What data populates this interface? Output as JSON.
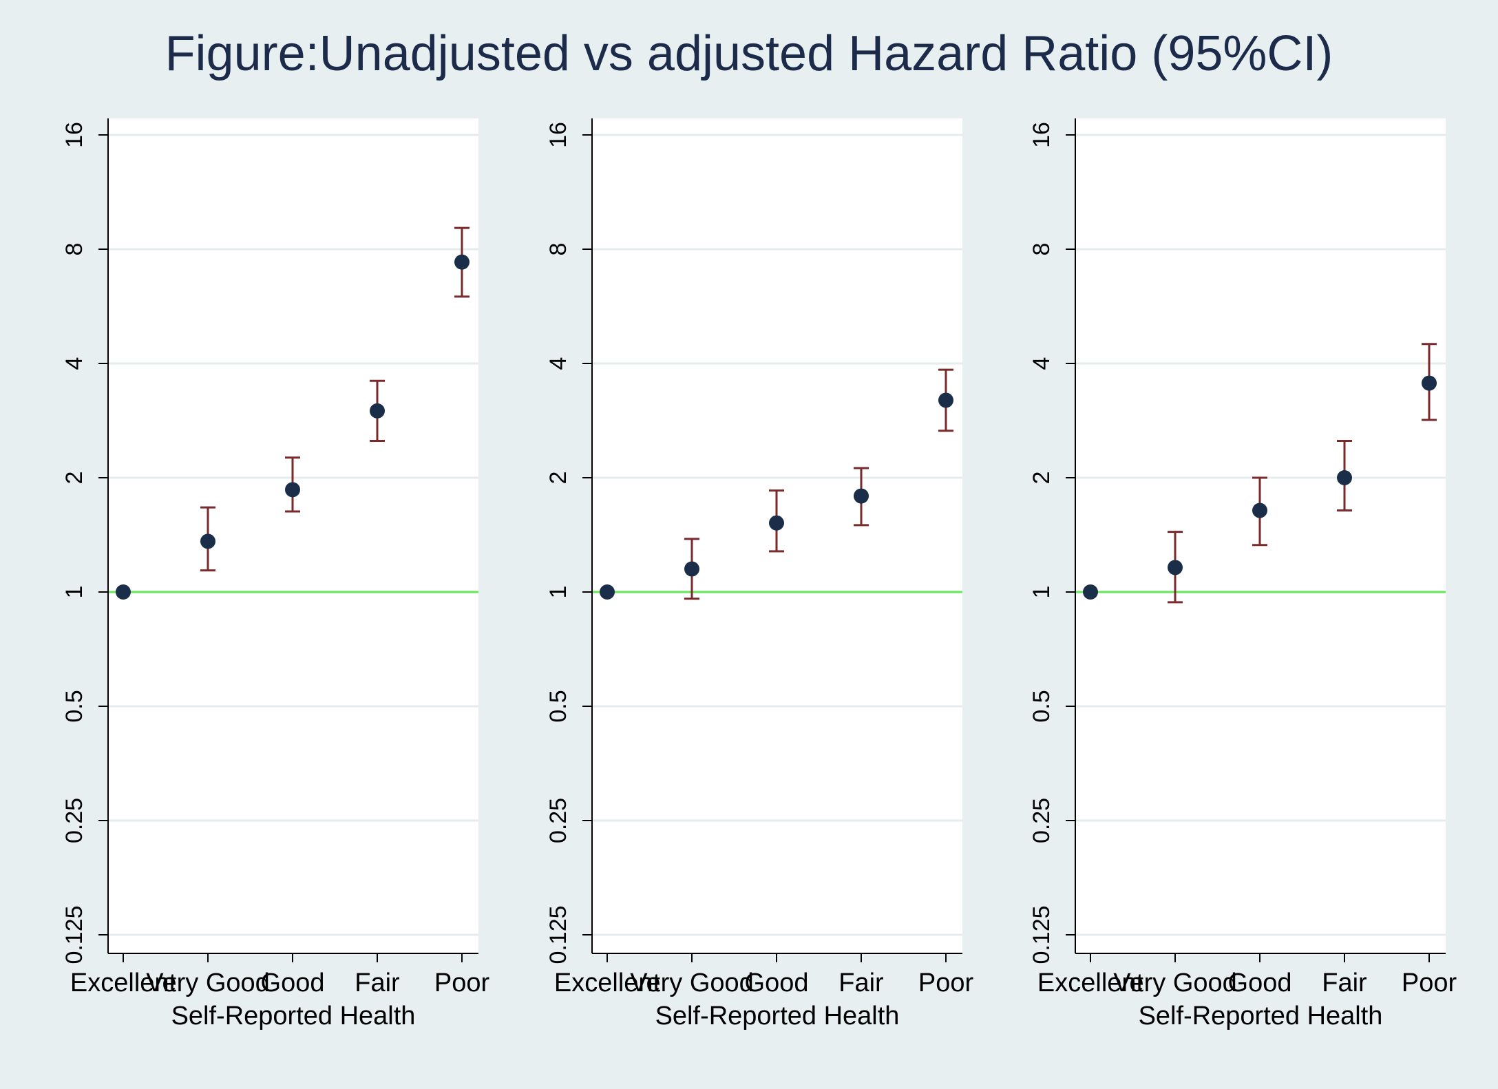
{
  "title": "Figure:Unadjusted vs adjusted Hazard Ratio (95%CI)",
  "colors": {
    "background": "#e8eff1",
    "plot_bg": "#ffffff",
    "title": "#1c2b4a",
    "point": "#1a2e4a",
    "ci": "#7a2a2a",
    "reference_line": "#62e85a",
    "grid": "#e4ecee",
    "axis": "#000000"
  },
  "chart_data": [
    {
      "type": "scatter",
      "error_bars": true,
      "categories": [
        "Excellent",
        "Very Good",
        "Good",
        "Fair",
        "Poor"
      ],
      "xlabel": "Self-Reported Health",
      "ylabel": "",
      "yscale": "log2",
      "ylim": [
        0.125,
        16
      ],
      "yticks": [
        "0.125",
        "0.25",
        "0.5",
        "1",
        "2",
        "4",
        "8",
        "16"
      ],
      "reference_line": 1,
      "grid": true,
      "estimates": [
        1,
        1.36,
        1.86,
        3.0,
        7.4
      ],
      "lower": [
        1,
        1.14,
        1.63,
        2.5,
        6.0
      ],
      "upper": [
        1,
        1.67,
        2.26,
        3.6,
        9.1
      ]
    },
    {
      "type": "scatter",
      "error_bars": true,
      "categories": [
        "Excellent",
        "Very Good",
        "Good",
        "Fair",
        "Poor"
      ],
      "xlabel": "Self-Reported Health",
      "ylabel": "",
      "yscale": "log2",
      "ylim": [
        0.125,
        16
      ],
      "yticks": [
        "0.125",
        "0.25",
        "0.5",
        "1",
        "2",
        "4",
        "8",
        "16"
      ],
      "reference_line": 1,
      "grid": true,
      "estimates": [
        1,
        1.15,
        1.52,
        1.79,
        3.2
      ],
      "lower": [
        1,
        0.96,
        1.28,
        1.5,
        2.66
      ],
      "upper": [
        1,
        1.38,
        1.85,
        2.12,
        3.85
      ]
    },
    {
      "type": "scatter",
      "error_bars": true,
      "categories": [
        "Excellent",
        "Very Good",
        "Good",
        "Fair",
        "Poor"
      ],
      "xlabel": "Self-Reported Health",
      "ylabel": "",
      "yscale": "log2",
      "ylim": [
        0.125,
        16
      ],
      "yticks": [
        "0.125",
        "0.25",
        "0.5",
        "1",
        "2",
        "4",
        "8",
        "16"
      ],
      "reference_line": 1,
      "grid": true,
      "estimates": [
        1,
        1.16,
        1.64,
        2.0,
        3.55
      ],
      "lower": [
        1,
        0.94,
        1.33,
        1.64,
        2.84
      ],
      "upper": [
        1,
        1.44,
        2.0,
        2.5,
        4.5
      ]
    }
  ]
}
